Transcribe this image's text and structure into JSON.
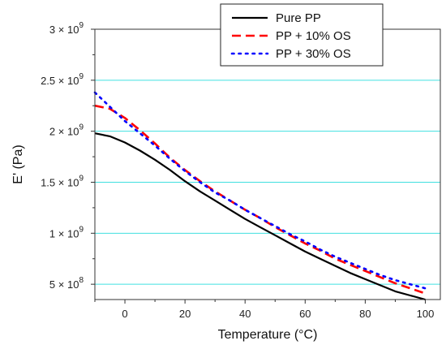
{
  "chart_data": {
    "type": "line",
    "xlabel": "Temperature (°C)",
    "ylabel": "E' (Pa)",
    "xlim": [
      -10,
      105
    ],
    "ylim": [
      350000000,
      3000000000
    ],
    "x_ticks": [
      0,
      20,
      40,
      60,
      80,
      100
    ],
    "x_tick_labels": [
      "0",
      "20",
      "40",
      "60",
      "80",
      "100"
    ],
    "y_ticks": [
      500000000,
      1000000000,
      1500000000,
      2000000000,
      2500000000,
      3000000000
    ],
    "y_tick_labels": [
      {
        "mantissa": "5 × 10",
        "exp": "8"
      },
      {
        "mantissa": "1 × 10",
        "exp": "9"
      },
      {
        "mantissa": "1.5 × 10",
        "exp": "9"
      },
      {
        "mantissa": "2 × 10",
        "exp": "9"
      },
      {
        "mantissa": "2.5 × 10",
        "exp": "9"
      },
      {
        "mantissa": "3 × 10",
        "exp": "9"
      }
    ],
    "grid": "horizontal",
    "grid_color": "#40e0e0",
    "legend_position": "top-right",
    "series": [
      {
        "name": "Pure PP",
        "color": "#000000",
        "style": "solid",
        "x": [
          -10,
          -5,
          0,
          5,
          10,
          15,
          20,
          25,
          30,
          35,
          40,
          45,
          50,
          55,
          60,
          65,
          70,
          75,
          80,
          85,
          90,
          95,
          100
        ],
        "y": [
          1980000000,
          1950000000,
          1890000000,
          1810000000,
          1720000000,
          1620000000,
          1510000000,
          1410000000,
          1320000000,
          1230000000,
          1140000000,
          1060000000,
          980000000,
          900000000,
          820000000,
          750000000,
          680000000,
          610000000,
          550000000,
          490000000,
          430000000,
          390000000,
          350000000
        ]
      },
      {
        "name": "PP + 10% OS",
        "color": "#ff0000",
        "style": "dashed",
        "x": [
          -10,
          -5,
          0,
          5,
          10,
          15,
          20,
          25,
          30,
          35,
          40,
          45,
          50,
          55,
          60,
          65,
          70,
          75,
          80,
          85,
          90,
          95,
          100
        ],
        "y": [
          2250000000,
          2220000000,
          2130000000,
          2010000000,
          1880000000,
          1740000000,
          1620000000,
          1510000000,
          1410000000,
          1320000000,
          1230000000,
          1150000000,
          1060000000,
          980000000,
          900000000,
          830000000,
          750000000,
          690000000,
          630000000,
          570000000,
          510000000,
          460000000,
          410000000
        ]
      },
      {
        "name": "PP + 30% OS",
        "color": "#0000ff",
        "style": "dotted",
        "x": [
          -10,
          -5,
          0,
          5,
          10,
          15,
          20,
          25,
          30,
          35,
          40,
          45,
          50,
          55,
          60,
          65,
          70,
          75,
          80,
          85,
          90,
          95,
          100
        ],
        "y": [
          2380000000,
          2240000000,
          2100000000,
          1980000000,
          1860000000,
          1730000000,
          1610000000,
          1500000000,
          1400000000,
          1320000000,
          1230000000,
          1150000000,
          1070000000,
          990000000,
          920000000,
          840000000,
          770000000,
          710000000,
          650000000,
          590000000,
          540000000,
          500000000,
          460000000
        ]
      }
    ]
  }
}
